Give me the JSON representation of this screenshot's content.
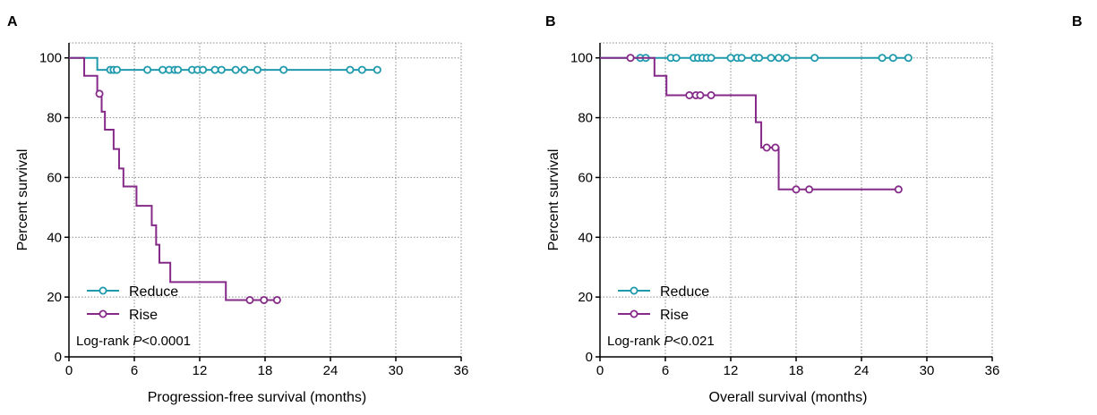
{
  "corner_letter": "B",
  "chart_data": [
    {
      "type": "line",
      "panel_label": "A",
      "xlabel": "Progression-free survival (months)",
      "ylabel": "Percent survival",
      "xlim": [
        0,
        36
      ],
      "ylim": [
        0,
        105
      ],
      "xticks": [
        0,
        6,
        12,
        18,
        24,
        30,
        36
      ],
      "yticks": [
        0,
        20,
        40,
        60,
        80,
        100
      ],
      "grid": true,
      "legend_position": "bottom-left",
      "annotation": {
        "prefix": "Log-rank ",
        "italic": "P",
        "suffix": "<0.0001"
      },
      "series": [
        {
          "name": "Reduce",
          "color": "#1f9aad",
          "steps": [
            [
              0,
              100
            ],
            [
              2.6,
              96
            ],
            [
              28.5,
              96
            ]
          ],
          "censored": [
            [
              3.8,
              96
            ],
            [
              4.1,
              96
            ],
            [
              4.4,
              96
            ],
            [
              7.2,
              96
            ],
            [
              8.6,
              96
            ],
            [
              9.2,
              96
            ],
            [
              9.7,
              96
            ],
            [
              10.0,
              96
            ],
            [
              11.3,
              96
            ],
            [
              11.8,
              96
            ],
            [
              12.3,
              96
            ],
            [
              13.4,
              96
            ],
            [
              14.0,
              96
            ],
            [
              15.3,
              96
            ],
            [
              16.1,
              96
            ],
            [
              17.3,
              96
            ],
            [
              19.7,
              96
            ],
            [
              25.8,
              96
            ],
            [
              26.9,
              96
            ],
            [
              28.3,
              96
            ]
          ]
        },
        {
          "name": "Rise",
          "color": "#852a88",
          "steps": [
            [
              0,
              100
            ],
            [
              1.4,
              94
            ],
            [
              2.6,
              88
            ],
            [
              3.0,
              82
            ],
            [
              3.3,
              76
            ],
            [
              4.1,
              69.5
            ],
            [
              4.6,
              63
            ],
            [
              5.0,
              57
            ],
            [
              6.2,
              50.5
            ],
            [
              7.6,
              44
            ],
            [
              8.0,
              37.5
            ],
            [
              8.3,
              31.5
            ],
            [
              9.3,
              25
            ],
            [
              14.4,
              19
            ],
            [
              19.3,
              19
            ]
          ],
          "censored": [
            [
              2.8,
              88
            ],
            [
              16.6,
              19
            ],
            [
              17.9,
              19
            ],
            [
              19.1,
              19
            ]
          ]
        }
      ]
    },
    {
      "type": "line",
      "panel_label": "B",
      "xlabel": "Overall survival (months)",
      "ylabel": "Percent survival",
      "xlim": [
        0,
        36
      ],
      "ylim": [
        0,
        105
      ],
      "xticks": [
        0,
        6,
        12,
        18,
        24,
        30,
        36
      ],
      "yticks": [
        0,
        20,
        40,
        60,
        80,
        100
      ],
      "grid": true,
      "legend_position": "bottom-left",
      "annotation": {
        "prefix": "Log-rank ",
        "italic": "P",
        "suffix": "<0.021"
      },
      "series": [
        {
          "name": "Reduce",
          "color": "#1f9aad",
          "steps": [
            [
              0,
              100
            ],
            [
              28.5,
              100
            ]
          ],
          "censored": [
            [
              3.7,
              100
            ],
            [
              4.2,
              100
            ],
            [
              6.5,
              100
            ],
            [
              7.0,
              100
            ],
            [
              8.6,
              100
            ],
            [
              9.0,
              100
            ],
            [
              9.4,
              100
            ],
            [
              9.8,
              100
            ],
            [
              10.2,
              100
            ],
            [
              12.0,
              100
            ],
            [
              12.6,
              100
            ],
            [
              13.0,
              100
            ],
            [
              14.2,
              100
            ],
            [
              14.6,
              100
            ],
            [
              15.7,
              100
            ],
            [
              16.4,
              100
            ],
            [
              17.1,
              100
            ],
            [
              19.7,
              100
            ],
            [
              25.9,
              100
            ],
            [
              26.9,
              100
            ],
            [
              28.3,
              100
            ]
          ]
        },
        {
          "name": "Rise",
          "color": "#852a88",
          "steps": [
            [
              0,
              100
            ],
            [
              5.0,
              94
            ],
            [
              6.1,
              87.5
            ],
            [
              14.3,
              78.5
            ],
            [
              14.8,
              70
            ],
            [
              16.4,
              56
            ],
            [
              27.6,
              56
            ]
          ],
          "censored": [
            [
              2.8,
              100
            ],
            [
              8.2,
              87.5
            ],
            [
              8.8,
              87.5
            ],
            [
              9.2,
              87.5
            ],
            [
              10.2,
              87.5
            ],
            [
              15.3,
              70
            ],
            [
              16.1,
              70
            ],
            [
              18.0,
              56
            ],
            [
              19.2,
              56
            ],
            [
              27.4,
              56
            ]
          ]
        }
      ]
    }
  ]
}
